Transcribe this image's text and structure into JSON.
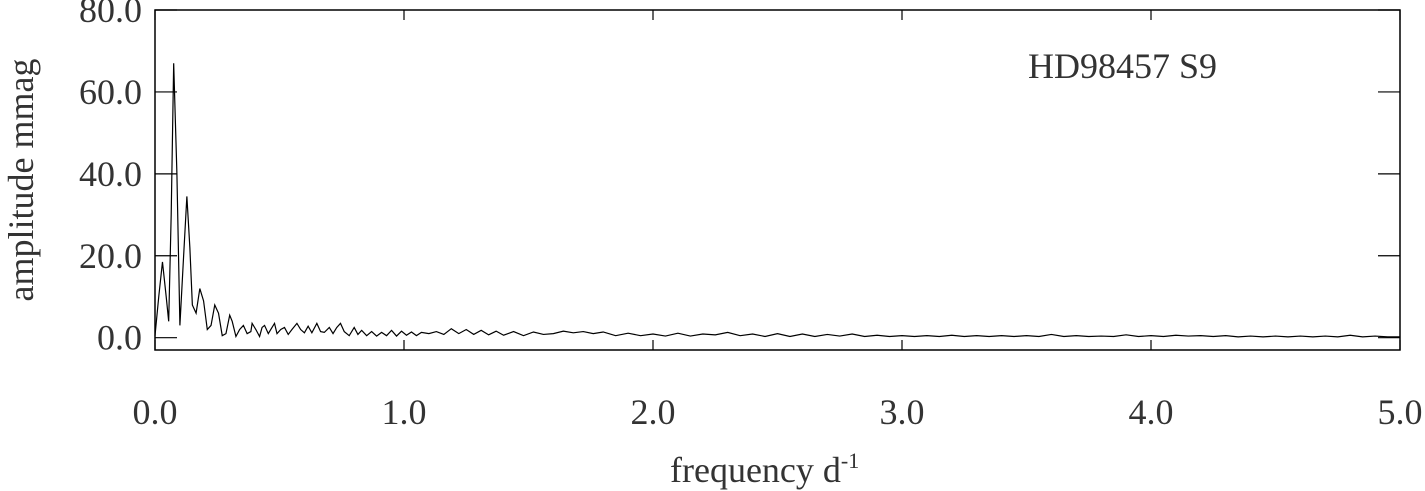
{
  "chart_data": {
    "type": "line",
    "title": "",
    "annotation": "HD98457 S9",
    "xlabel": "frequency d",
    "xlabel_superscript": "-1",
    "ylabel": "amplitude mmag",
    "xlim": [
      0,
      5
    ],
    "ylim": [
      -3,
      80
    ],
    "x_ticks": [
      0,
      1,
      2,
      3,
      4,
      5
    ],
    "x_tick_labels": [
      "0.0",
      "1.0",
      "2.0",
      "3.0",
      "4.0",
      "5.0"
    ],
    "y_ticks": [
      0,
      20,
      40,
      60,
      80
    ],
    "y_tick_labels": [
      "0.0",
      "20.0",
      "40.0",
      "60.0",
      "80.0"
    ],
    "grid": false,
    "line_color": "#000000",
    "series": [
      {
        "x": [
          0.0,
          0.015,
          0.03,
          0.045,
          0.055,
          0.065,
          0.075,
          0.088,
          0.1,
          0.115,
          0.128,
          0.14,
          0.15,
          0.165,
          0.18,
          0.195,
          0.21,
          0.225,
          0.24,
          0.255,
          0.27,
          0.285,
          0.3,
          0.31,
          0.325,
          0.34,
          0.355,
          0.37,
          0.385,
          0.39,
          0.405,
          0.42,
          0.43,
          0.44,
          0.455,
          0.47,
          0.48,
          0.49,
          0.505,
          0.52,
          0.535,
          0.55,
          0.57,
          0.585,
          0.6,
          0.615,
          0.63,
          0.65,
          0.665,
          0.68,
          0.7,
          0.715,
          0.73,
          0.745,
          0.76,
          0.78,
          0.8,
          0.815,
          0.83,
          0.85,
          0.87,
          0.89,
          0.91,
          0.93,
          0.95,
          0.97,
          0.99,
          1.01,
          1.03,
          1.05,
          1.07,
          1.1,
          1.13,
          1.16,
          1.19,
          1.22,
          1.25,
          1.28,
          1.31,
          1.34,
          1.37,
          1.4,
          1.44,
          1.48,
          1.52,
          1.56,
          1.6,
          1.64,
          1.68,
          1.72,
          1.76,
          1.8,
          1.85,
          1.9,
          1.95,
          2.0,
          2.05,
          2.1,
          2.15,
          2.2,
          2.25,
          2.3,
          2.35,
          2.4,
          2.45,
          2.5,
          2.55,
          2.6,
          2.65,
          2.7,
          2.75,
          2.8,
          2.85,
          2.9,
          2.95,
          3.0,
          3.05,
          3.1,
          3.15,
          3.2,
          3.25,
          3.3,
          3.35,
          3.4,
          3.45,
          3.5,
          3.55,
          3.6,
          3.65,
          3.7,
          3.75,
          3.8,
          3.85,
          3.9,
          3.95,
          4.0,
          4.05,
          4.1,
          4.15,
          4.2,
          4.25,
          4.3,
          4.35,
          4.4,
          4.45,
          4.5,
          4.55,
          4.6,
          4.65,
          4.7,
          4.75,
          4.8,
          4.85,
          4.9,
          4.95,
          5.0
        ],
        "y": [
          0.5,
          10,
          18.5,
          10,
          4,
          30,
          67,
          40,
          3,
          20,
          34.5,
          22,
          8,
          6,
          12,
          9,
          2,
          3,
          8,
          6,
          0.5,
          1,
          5.5,
          4,
          0.3,
          2,
          3,
          1,
          1.5,
          3.5,
          2,
          0.3,
          2.5,
          3,
          1,
          2.5,
          3.5,
          1,
          2,
          2.5,
          0.8,
          2,
          3.5,
          2,
          1.2,
          2.8,
          1.2,
          3.5,
          1.5,
          1.3,
          2.5,
          1,
          2.5,
          3.5,
          1.5,
          0.5,
          2.5,
          0.8,
          1.8,
          0.5,
          1.5,
          0.4,
          1.3,
          0.5,
          1.8,
          0.4,
          1.6,
          0.6,
          1.4,
          0.5,
          1.3,
          1.0,
          1.5,
          0.8,
          2.2,
          1.0,
          2.0,
          0.8,
          1.8,
          0.7,
          1.6,
          0.6,
          1.5,
          0.5,
          1.4,
          0.8,
          1.0,
          1.6,
          1.2,
          1.5,
          1.0,
          1.4,
          0.5,
          1.1,
          0.5,
          0.9,
          0.4,
          1.1,
          0.4,
          0.9,
          0.7,
          1.3,
          0.5,
          0.9,
          0.3,
          1.0,
          0.3,
          0.9,
          0.3,
          0.8,
          0.4,
          0.9,
          0.3,
          0.6,
          0.3,
          0.5,
          0.3,
          0.5,
          0.3,
          0.6,
          0.3,
          0.5,
          0.3,
          0.5,
          0.3,
          0.5,
          0.3,
          0.8,
          0.3,
          0.5,
          0.3,
          0.4,
          0.3,
          0.7,
          0.3,
          0.5,
          0.3,
          0.6,
          0.4,
          0.5,
          0.3,
          0.5,
          0.2,
          0.4,
          0.2,
          0.4,
          0.2,
          0.4,
          0.2,
          0.4,
          0.2,
          0.6,
          0.2,
          0.4,
          0.2,
          0.2
        ]
      }
    ]
  }
}
